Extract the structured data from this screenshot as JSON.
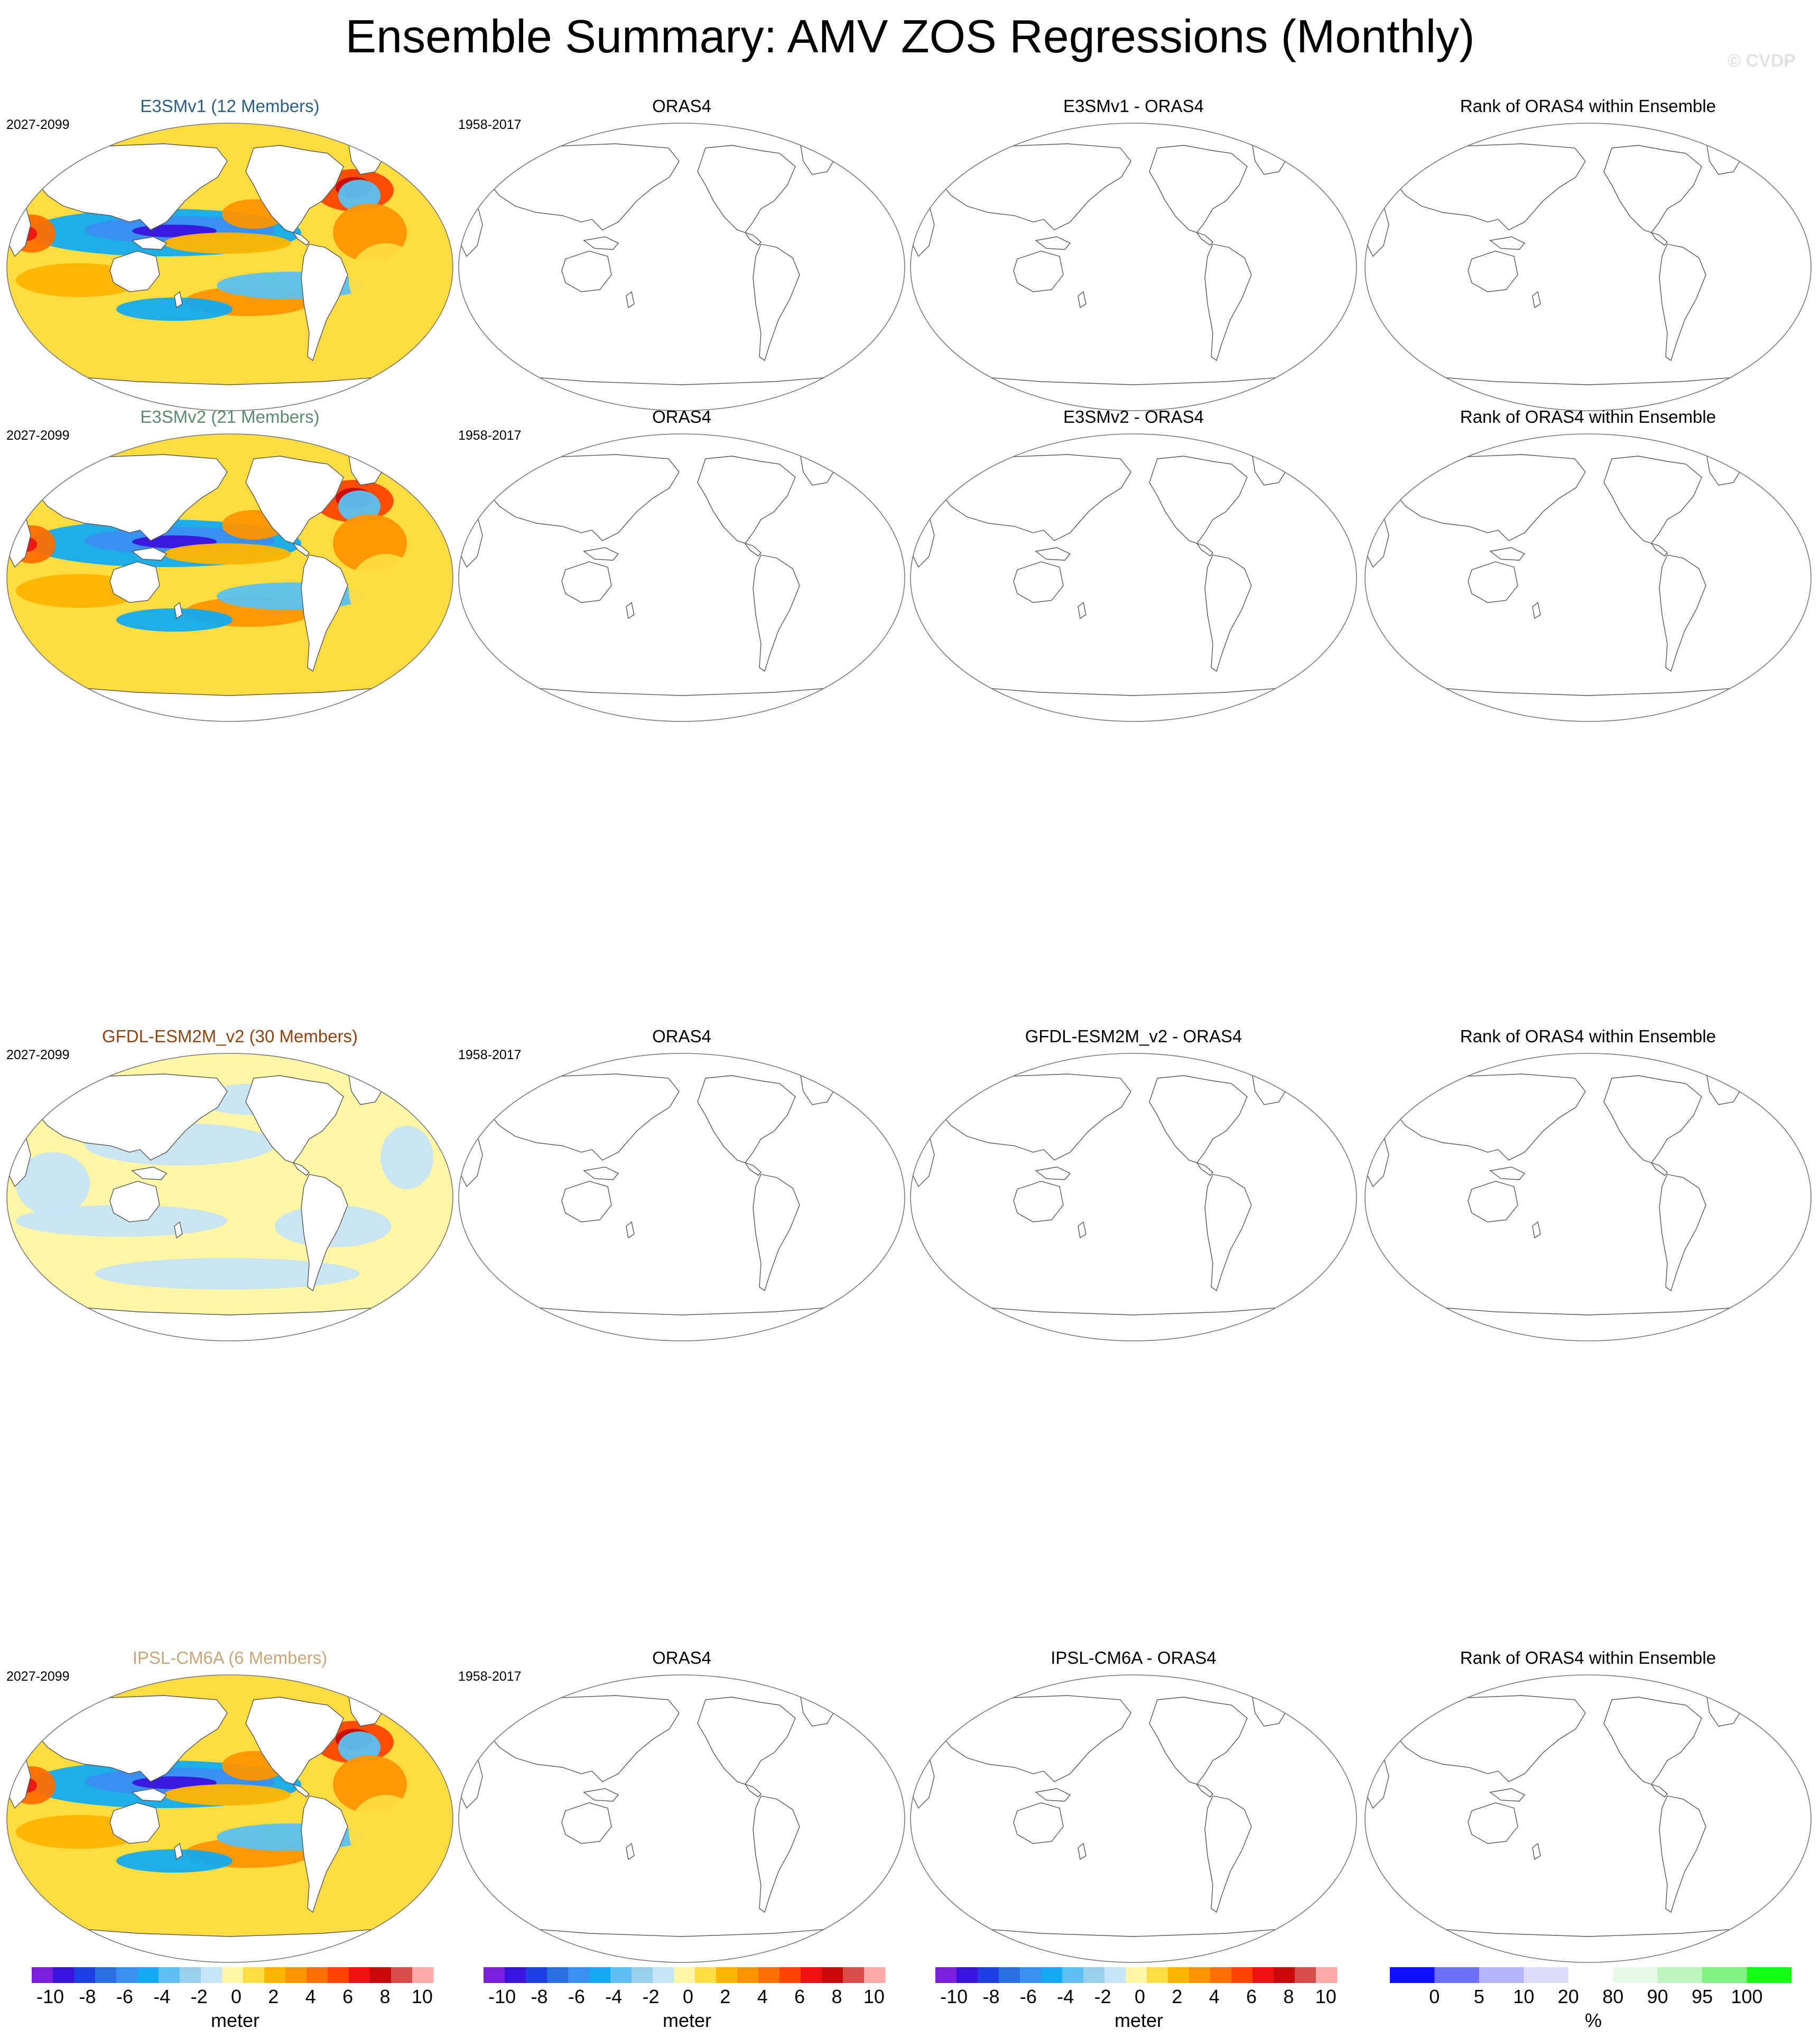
{
  "title": "Ensemble Summary: AMV ZOS Regressions (Monthly)",
  "watermark": "© CVDP",
  "colors": {
    "diverging": [
      "#7a1fe0",
      "#3a14dc",
      "#1f3fe6",
      "#2a6ee8",
      "#3a8ff0",
      "#12aaf0",
      "#5cc0f2",
      "#9ad0ec",
      "#c6e4f6",
      "#fff6a6",
      "#ffdd40",
      "#ffb400",
      "#ff9400",
      "#ff6e00",
      "#ff4400",
      "#ee1414",
      "#c80a0a",
      "#dc4a4a",
      "#ffaaaa"
    ],
    "rank": [
      "#1010ff",
      "#6e6eff",
      "#b4b4ff",
      "#dcdcfa",
      "#ffffff",
      "#e6fae6",
      "#bef5be",
      "#82f082",
      "#14ff14"
    ],
    "ensemble_title_colors": [
      "#2b5f83",
      "#5c8a6e",
      "#8b4513",
      "#c9a57a"
    ]
  },
  "rows": [
    {
      "ensemble_title": "E3SMv1 (12 Members)",
      "ensemble_years": "2027-2099",
      "obs_title": "ORAS4",
      "obs_years": "1958-2017",
      "diff_title": "E3SMv1 - ORAS4",
      "rank_title": "Rank of ORAS4 within Ensemble",
      "pattern": "strong"
    },
    {
      "ensemble_title": "E3SMv2 (21 Members)",
      "ensemble_years": "2027-2099",
      "obs_title": "ORAS4",
      "obs_years": "1958-2017",
      "diff_title": "E3SMv2 - ORAS4",
      "rank_title": "Rank of ORAS4 within Ensemble",
      "pattern": "strong"
    },
    {
      "ensemble_title": "GFDL-ESM2M_v2 (30 Members)",
      "ensemble_years": "2027-2099",
      "obs_title": "ORAS4",
      "obs_years": "1958-2017",
      "diff_title": "GFDL-ESM2M_v2 - ORAS4",
      "rank_title": "Rank of ORAS4 within Ensemble",
      "pattern": "weak"
    },
    {
      "ensemble_title": "IPSL-CM6A (6 Members)",
      "ensemble_years": "2027-2099",
      "obs_title": "ORAS4",
      "obs_years": "1958-2017",
      "diff_title": "IPSL-CM6A - ORAS4",
      "rank_title": "Rank of ORAS4 within Ensemble",
      "pattern": "strong"
    }
  ],
  "colorbars": [
    {
      "kind": "diverging",
      "labels": [
        "-10",
        "-8",
        "-6",
        "-4",
        "-2",
        "0",
        "2",
        "4",
        "6",
        "8",
        "10"
      ],
      "unit": "meter"
    },
    {
      "kind": "diverging",
      "labels": [
        "-10",
        "-8",
        "-6",
        "-4",
        "-2",
        "0",
        "2",
        "4",
        "6",
        "8",
        "10"
      ],
      "unit": "meter"
    },
    {
      "kind": "diverging",
      "labels": [
        "-10",
        "-8",
        "-6",
        "-4",
        "-2",
        "0",
        "2",
        "4",
        "6",
        "8",
        "10"
      ],
      "unit": "meter"
    },
    {
      "kind": "rank",
      "labels": [
        "0",
        "5",
        "10",
        "20",
        "80",
        "90",
        "95",
        "100"
      ],
      "unit": "%"
    }
  ]
}
